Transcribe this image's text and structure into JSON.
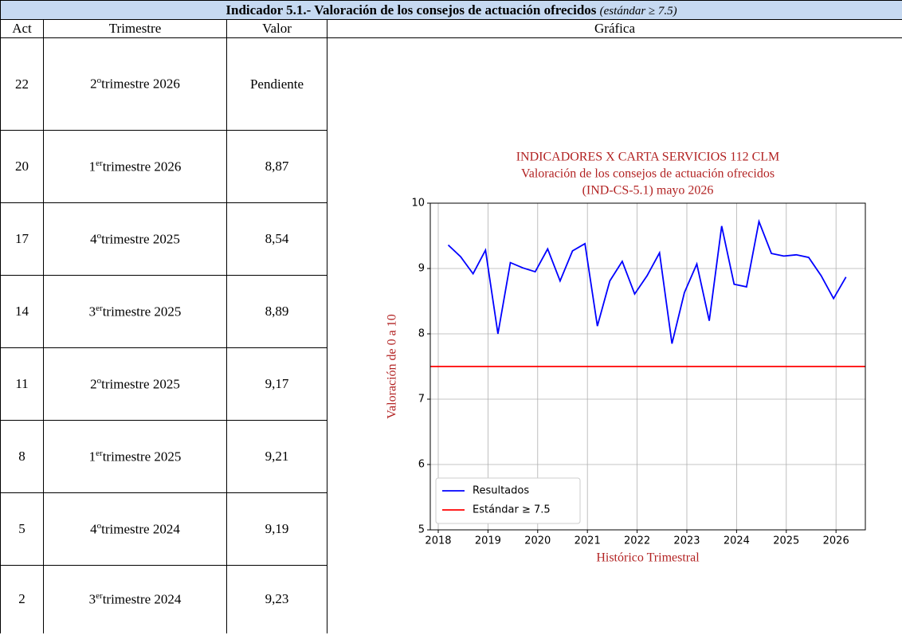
{
  "header": {
    "title": "Indicador 5.1.- Valoración de los consejos de actuación ofrecidos",
    "note": "(estándar ≥ 7.5)"
  },
  "table": {
    "columns": [
      "Act",
      "Trimestre",
      "Valor",
      "Gráfica"
    ],
    "rows": [
      {
        "act": "22",
        "trimestre": {
          "num": "2",
          "sup": "o",
          "text": "trimestre 2026"
        },
        "valor": "Pendiente"
      },
      {
        "act": "20",
        "trimestre": {
          "num": "1",
          "sup": "er",
          "text": "trimestre 2026"
        },
        "valor": "8,87"
      },
      {
        "act": "17",
        "trimestre": {
          "num": "4",
          "sup": "o",
          "text": "trimestre 2025"
        },
        "valor": "8,54"
      },
      {
        "act": "14",
        "trimestre": {
          "num": "3",
          "sup": "er",
          "text": "trimestre 2025"
        },
        "valor": "8,89"
      },
      {
        "act": "11",
        "trimestre": {
          "num": "2",
          "sup": "o",
          "text": "trimestre 2025"
        },
        "valor": "9,17"
      },
      {
        "act": "8",
        "trimestre": {
          "num": "1",
          "sup": "er",
          "text": "trimestre 2025"
        },
        "valor": "9,21"
      },
      {
        "act": "5",
        "trimestre": {
          "num": "4",
          "sup": "o",
          "text": "trimestre 2024"
        },
        "valor": "9,19"
      },
      {
        "act": "2",
        "trimestre": {
          "num": "3",
          "sup": "er",
          "text": "trimestre 2024"
        },
        "valor": "9,23"
      }
    ]
  },
  "chart_data": {
    "type": "line",
    "title": [
      "INDICADORES X CARTA SERVICIOS 112 CLM",
      "Valoración de los consejos de actuación ofrecidos",
      "(IND-CS-5.1) mayo 2026"
    ],
    "xlabel": "Histórico Trimestral",
    "ylabel": "Valoración de 0 a 10",
    "series": [
      {
        "name": "Resultados",
        "color": "#0000ff",
        "x": [
          2018.2,
          2018.45,
          2018.7,
          2018.95,
          2019.2,
          2019.45,
          2019.7,
          2019.95,
          2020.2,
          2020.45,
          2020.7,
          2020.95,
          2021.2,
          2021.45,
          2021.7,
          2021.95,
          2022.2,
          2022.45,
          2022.7,
          2022.95,
          2023.2,
          2023.45,
          2023.7,
          2023.95,
          2024.2,
          2024.45,
          2024.7,
          2024.95,
          2025.2,
          2025.45,
          2025.7,
          2025.95,
          2026.2
        ],
        "values": [
          9.36,
          9.18,
          8.92,
          9.28,
          8.0,
          9.09,
          9.01,
          8.95,
          9.3,
          8.81,
          9.27,
          9.38,
          8.12,
          8.81,
          9.11,
          8.61,
          8.89,
          9.24,
          7.85,
          8.63,
          9.07,
          8.2,
          9.65,
          8.76,
          8.72,
          9.72,
          9.23,
          9.19,
          9.21,
          9.17,
          8.89,
          8.54,
          8.87
        ]
      }
    ],
    "reference_lines": [
      {
        "name": "Estándar ≥ 7.5",
        "color": "#ff0000",
        "value": 7.5
      }
    ],
    "xlim": [
      2017.84,
      2026.59
    ],
    "xticks": [
      2018,
      2019,
      2020,
      2021,
      2022,
      2023,
      2024,
      2025,
      2026
    ],
    "ylim": [
      5,
      10
    ],
    "yticks": [
      5,
      6,
      7,
      8,
      9,
      10
    ],
    "grid": true,
    "legend": "lower left"
  }
}
